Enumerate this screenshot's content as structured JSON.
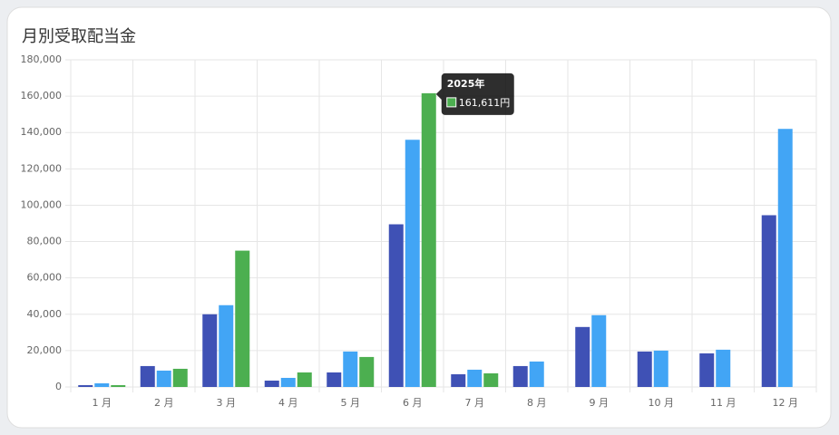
{
  "chart_data": {
    "type": "bar",
    "title": "月別受取配当金",
    "categories": [
      "1 月",
      "2 月",
      "3 月",
      "4 月",
      "5 月",
      "6 月",
      "7 月",
      "8 月",
      "9 月",
      "10 月",
      "11 月",
      "12 月"
    ],
    "series": [
      {
        "color": "#3f51b5",
        "values": [
          1000,
          11500,
          40000,
          3500,
          8000,
          89500,
          7000,
          11500,
          33000,
          19500,
          18500,
          94500
        ]
      },
      {
        "color": "#42a5f5",
        "values": [
          2000,
          9000,
          45000,
          5000,
          19500,
          136000,
          9500,
          14000,
          39500,
          20000,
          20500,
          142000
        ]
      },
      {
        "name": "2025年",
        "color": "#4caf50",
        "values": [
          1000,
          10000,
          75000,
          8000,
          16500,
          161611,
          7500,
          null,
          null,
          null,
          null,
          null
        ],
        "value_labels": [
          null,
          null,
          null,
          null,
          null,
          "161,611円",
          null,
          null,
          null,
          null,
          null,
          null
        ]
      }
    ],
    "ylim": [
      0,
      180000
    ],
    "yticks": [
      0,
      {
        "value": 20000,
        "label": "20,000"
      },
      {
        "value": 40000,
        "label": "40,000"
      },
      {
        "value": 60000,
        "label": "60,000"
      },
      {
        "value": 80000,
        "label": "80,000"
      },
      {
        "value": 100000,
        "label": "100,000"
      },
      {
        "value": 120000,
        "label": "120,000"
      },
      {
        "value": 140000,
        "label": "140,000"
      },
      {
        "value": 160000,
        "label": "160,000"
      },
      {
        "value": 180000,
        "label": "180,000"
      }
    ],
    "grid": true
  }
}
